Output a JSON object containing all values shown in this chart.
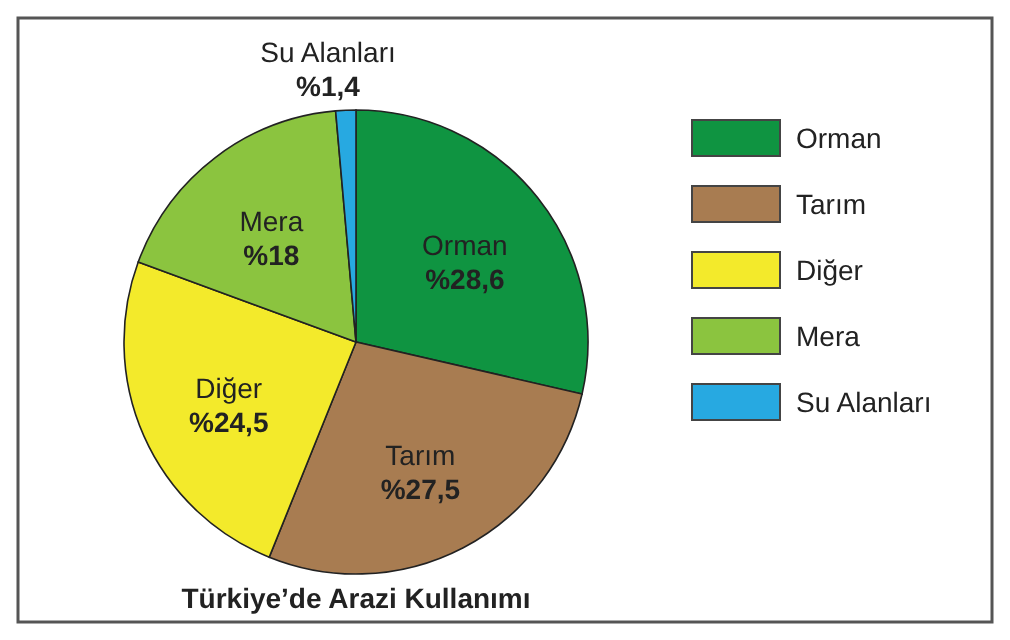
{
  "chart_data": {
    "type": "pie",
    "title": "Türkiye’de Arazi Kullanımı",
    "categories": [
      "Orman",
      "Tarım",
      "Diğer",
      "Mera",
      "Su Alanları"
    ],
    "values": [
      28.6,
      27.5,
      24.5,
      18,
      1.4
    ],
    "value_labels": [
      "%28,6",
      "%27,5",
      "%24,5",
      "%18",
      "%1,4"
    ],
    "colors": [
      "#0f9441",
      "#a87c51",
      "#f3ea2b",
      "#8bc43f",
      "#27a9e1"
    ],
    "legend": "right"
  }
}
